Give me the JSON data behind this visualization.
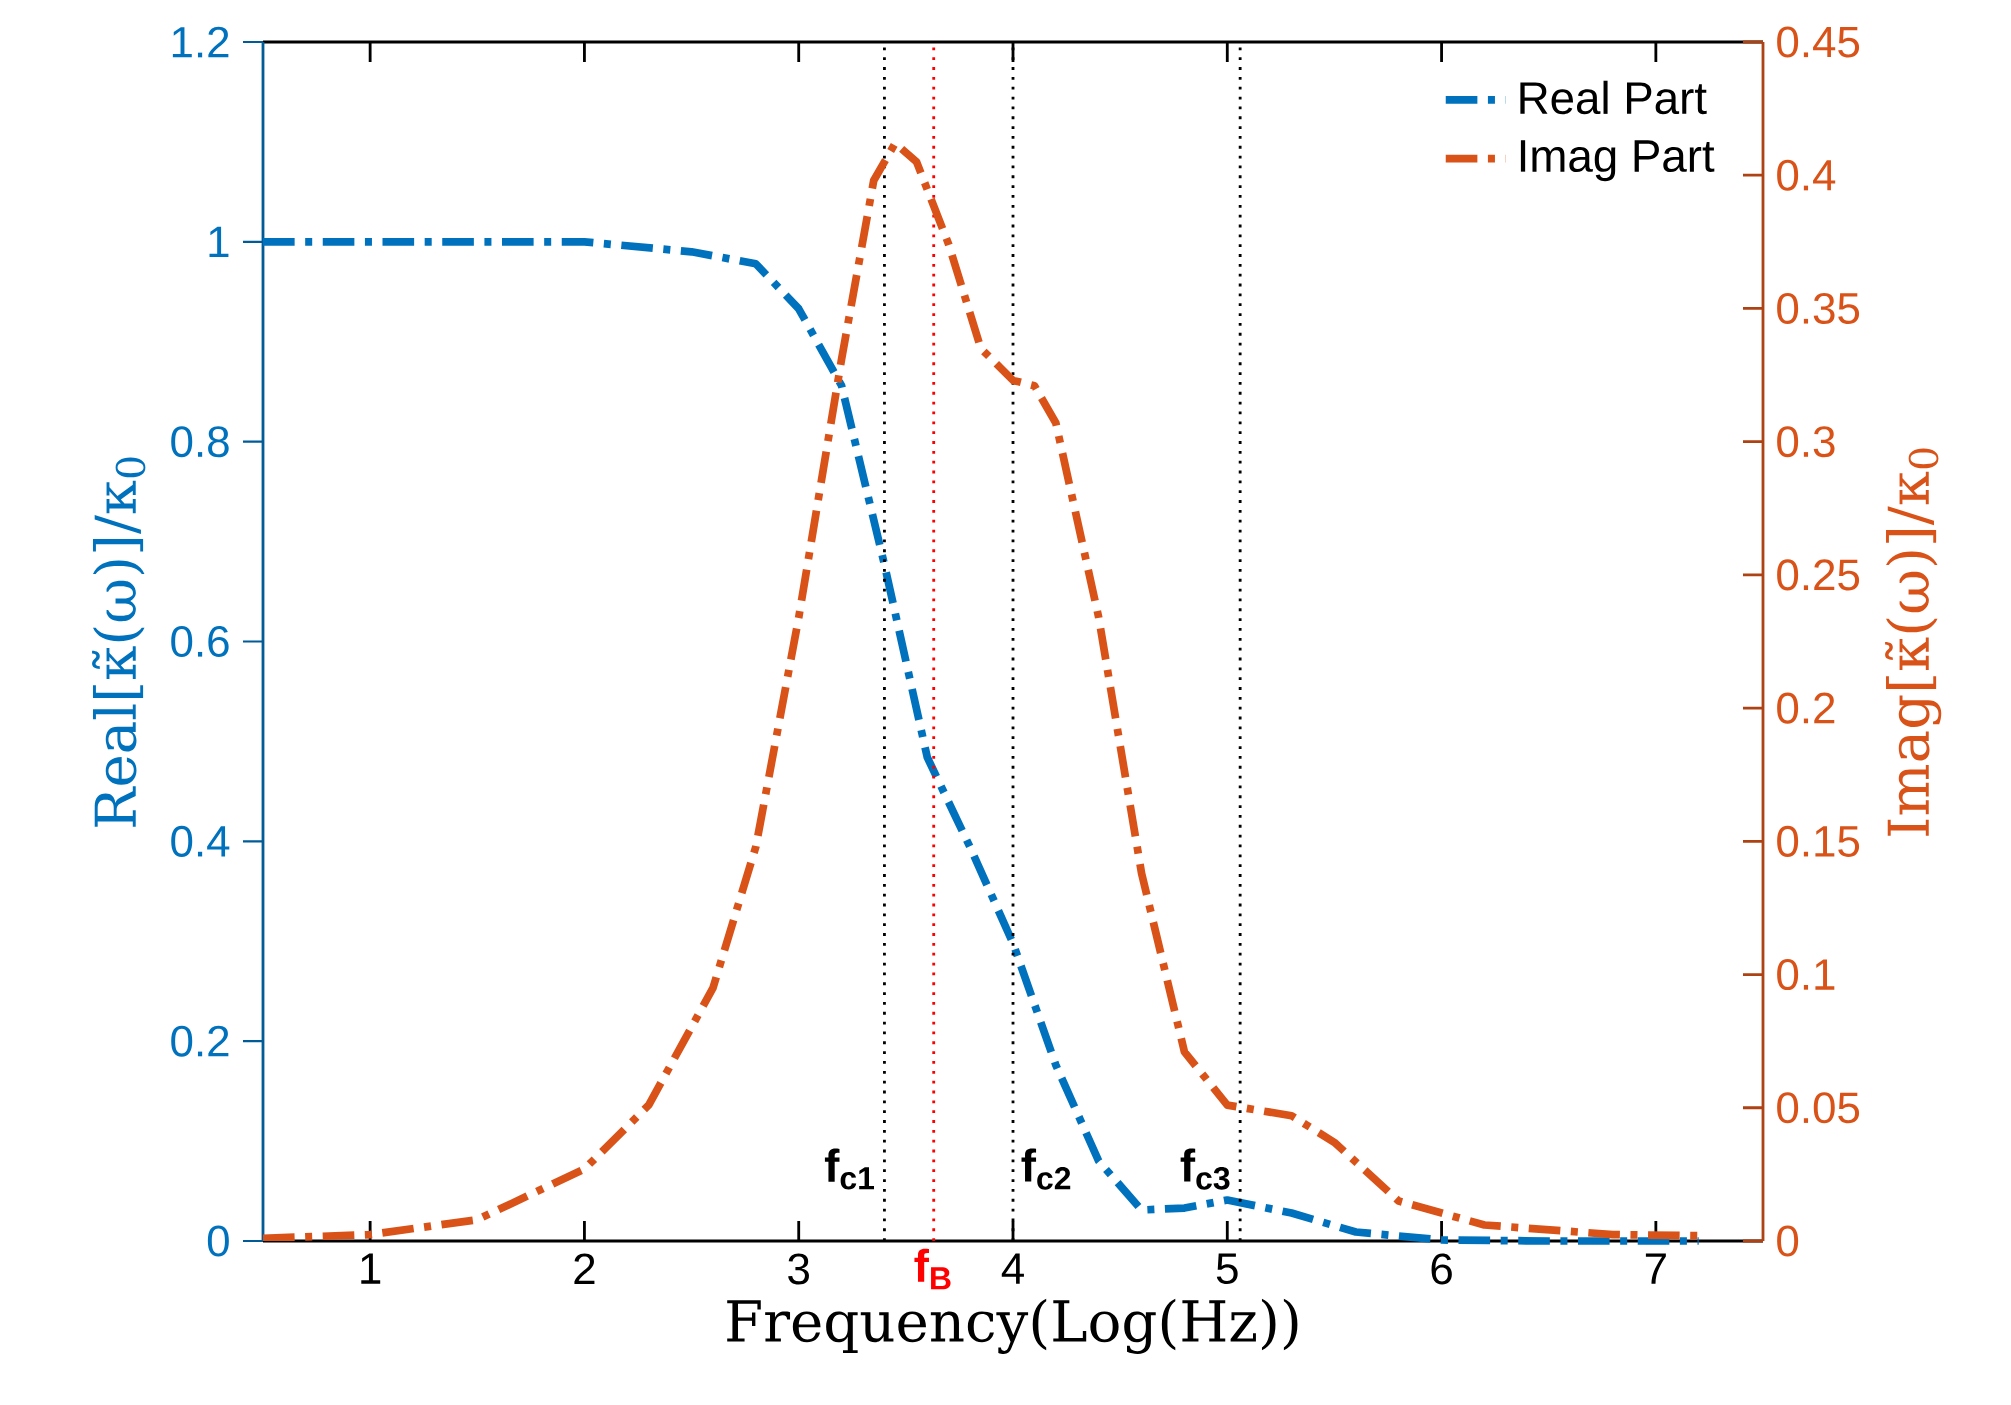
{
  "chart_data": {
    "type": "line",
    "xlabel": "Frequency(Log(Hz))",
    "ylabel": "Real[κ̃(ω)]/κ$_{0}$",
    "y2label": "Imag[κ̃(ω)]/κ$_{0}$",
    "xlim": [
      0.5,
      7.5
    ],
    "xticks": [
      1,
      2,
      3,
      4,
      5,
      6,
      7
    ],
    "ylim": [
      0,
      1.2
    ],
    "yticks": [
      0,
      0.2,
      0.4,
      0.6,
      0.8,
      1,
      1.2
    ],
    "y2lim": [
      0,
      0.45
    ],
    "y2ticks": [
      0,
      0.05,
      0.1,
      0.15,
      0.2,
      0.25,
      0.3,
      0.35,
      0.4,
      0.45
    ],
    "legend": "top right",
    "line_style": "dashdot",
    "grid": false,
    "series": [
      {
        "name": "Real Part",
        "color": "#0072bd",
        "x": [
          0.5,
          1,
          1.5,
          2,
          2.5,
          2.8,
          3.0,
          3.2,
          3.4,
          3.6,
          3.8,
          4.0,
          4.2,
          4.4,
          4.6,
          4.8,
          5.0,
          5.3,
          5.6,
          6.0,
          6.5,
          7.0,
          7.2
        ],
        "values": [
          1,
          1,
          1,
          1,
          0.99,
          0.978,
          0.933,
          0.856,
          0.677,
          0.484,
          0.394,
          0.298,
          0.176,
          0.08,
          0.031,
          0.033,
          0.041,
          0.028,
          0.009,
          0.001,
          0,
          0,
          0
        ]
      },
      {
        "name": "Imag Part",
        "color": "#d95319",
        "axis": "y2",
        "x": [
          0.5,
          1,
          1.5,
          2,
          2.3,
          2.6,
          2.8,
          3.0,
          3.2,
          3.35,
          3.45,
          3.55,
          3.7,
          3.85,
          4.0,
          4.1,
          4.2,
          4.4,
          4.6,
          4.8,
          5.0,
          5.3,
          5.5,
          5.8,
          6.2,
          6.8,
          7.2
        ],
        "values": [
          0.001,
          0.0024,
          0.008,
          0.027,
          0.051,
          0.095,
          0.148,
          0.234,
          0.331,
          0.398,
          0.412,
          0.405,
          0.374,
          0.335,
          0.323,
          0.321,
          0.307,
          0.234,
          0.138,
          0.071,
          0.051,
          0.047,
          0.037,
          0.015,
          0.006,
          0.0024,
          0.002
        ]
      }
    ],
    "ref_lines": [
      {
        "axis": "x",
        "value": 3.4,
        "label": "f$_{c1}$",
        "color": "#000000",
        "line_style": "dotted"
      },
      {
        "axis": "x",
        "value": 3.63,
        "label": "f$_{B}$",
        "color": "#ff0000",
        "line_style": "dotted"
      },
      {
        "axis": "x",
        "value": 4.0,
        "label": "f$_{c2}$",
        "color": "#000000",
        "line_style": "dotted"
      },
      {
        "axis": "x",
        "value": 5.06,
        "label": "f$_{c3}$",
        "color": "#000000",
        "line_style": "dotted"
      }
    ]
  }
}
